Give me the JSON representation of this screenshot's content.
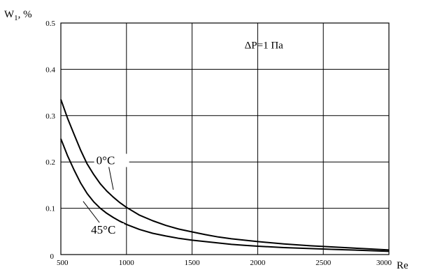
{
  "chart_data": {
    "type": "line",
    "title": "",
    "xlabel": "Re",
    "ylabel": "W",
    "ylabel_sub": "1",
    "ylabel_suffix": ", %",
    "xlim": [
      500,
      3000
    ],
    "ylim": [
      0,
      0.5
    ],
    "grid": true,
    "x_ticks": [
      500,
      1000,
      1500,
      2000,
      2500,
      3000
    ],
    "y_ticks": [
      0,
      0.1,
      0.2,
      0.3,
      0.4,
      0.5
    ],
    "y_tick_labels": [
      "0",
      "0.1",
      "0.2",
      "0.3",
      "0.4",
      "0.5"
    ],
    "annotations": [
      {
        "text": "ΔP=1 Па",
        "x": 1900,
        "y": 0.445
      }
    ],
    "series": [
      {
        "name": "0°C",
        "label_anchor": {
          "x": 770,
          "y": 0.195
        },
        "label_target": {
          "x": 900,
          "y": 0.14
        },
        "x": [
          500,
          550,
          600,
          650,
          700,
          750,
          800,
          850,
          900,
          950,
          1000,
          1100,
          1200,
          1300,
          1400,
          1500,
          1600,
          1700,
          1800,
          1900,
          2000,
          2200,
          2400,
          2600,
          2800,
          3000
        ],
        "y": [
          0.335,
          0.295,
          0.26,
          0.226,
          0.196,
          0.173,
          0.153,
          0.137,
          0.124,
          0.112,
          0.102,
          0.085,
          0.073,
          0.063,
          0.055,
          0.049,
          0.043,
          0.038,
          0.034,
          0.031,
          0.028,
          0.023,
          0.019,
          0.016,
          0.013,
          0.01
        ]
      },
      {
        "name": "45°C",
        "label_anchor": {
          "x": 730,
          "y": 0.045
        },
        "label_target": {
          "x": 670,
          "y": 0.115
        },
        "x": [
          500,
          550,
          600,
          650,
          700,
          750,
          800,
          850,
          900,
          950,
          1000,
          1100,
          1200,
          1300,
          1400,
          1500,
          1600,
          1700,
          1800,
          1900,
          2000,
          2200,
          2400,
          2600,
          2800,
          3000
        ],
        "y": [
          0.25,
          0.214,
          0.183,
          0.155,
          0.132,
          0.114,
          0.1,
          0.089,
          0.08,
          0.072,
          0.065,
          0.054,
          0.046,
          0.04,
          0.035,
          0.031,
          0.028,
          0.025,
          0.022,
          0.02,
          0.018,
          0.015,
          0.013,
          0.011,
          0.009,
          0.007
        ]
      }
    ]
  }
}
